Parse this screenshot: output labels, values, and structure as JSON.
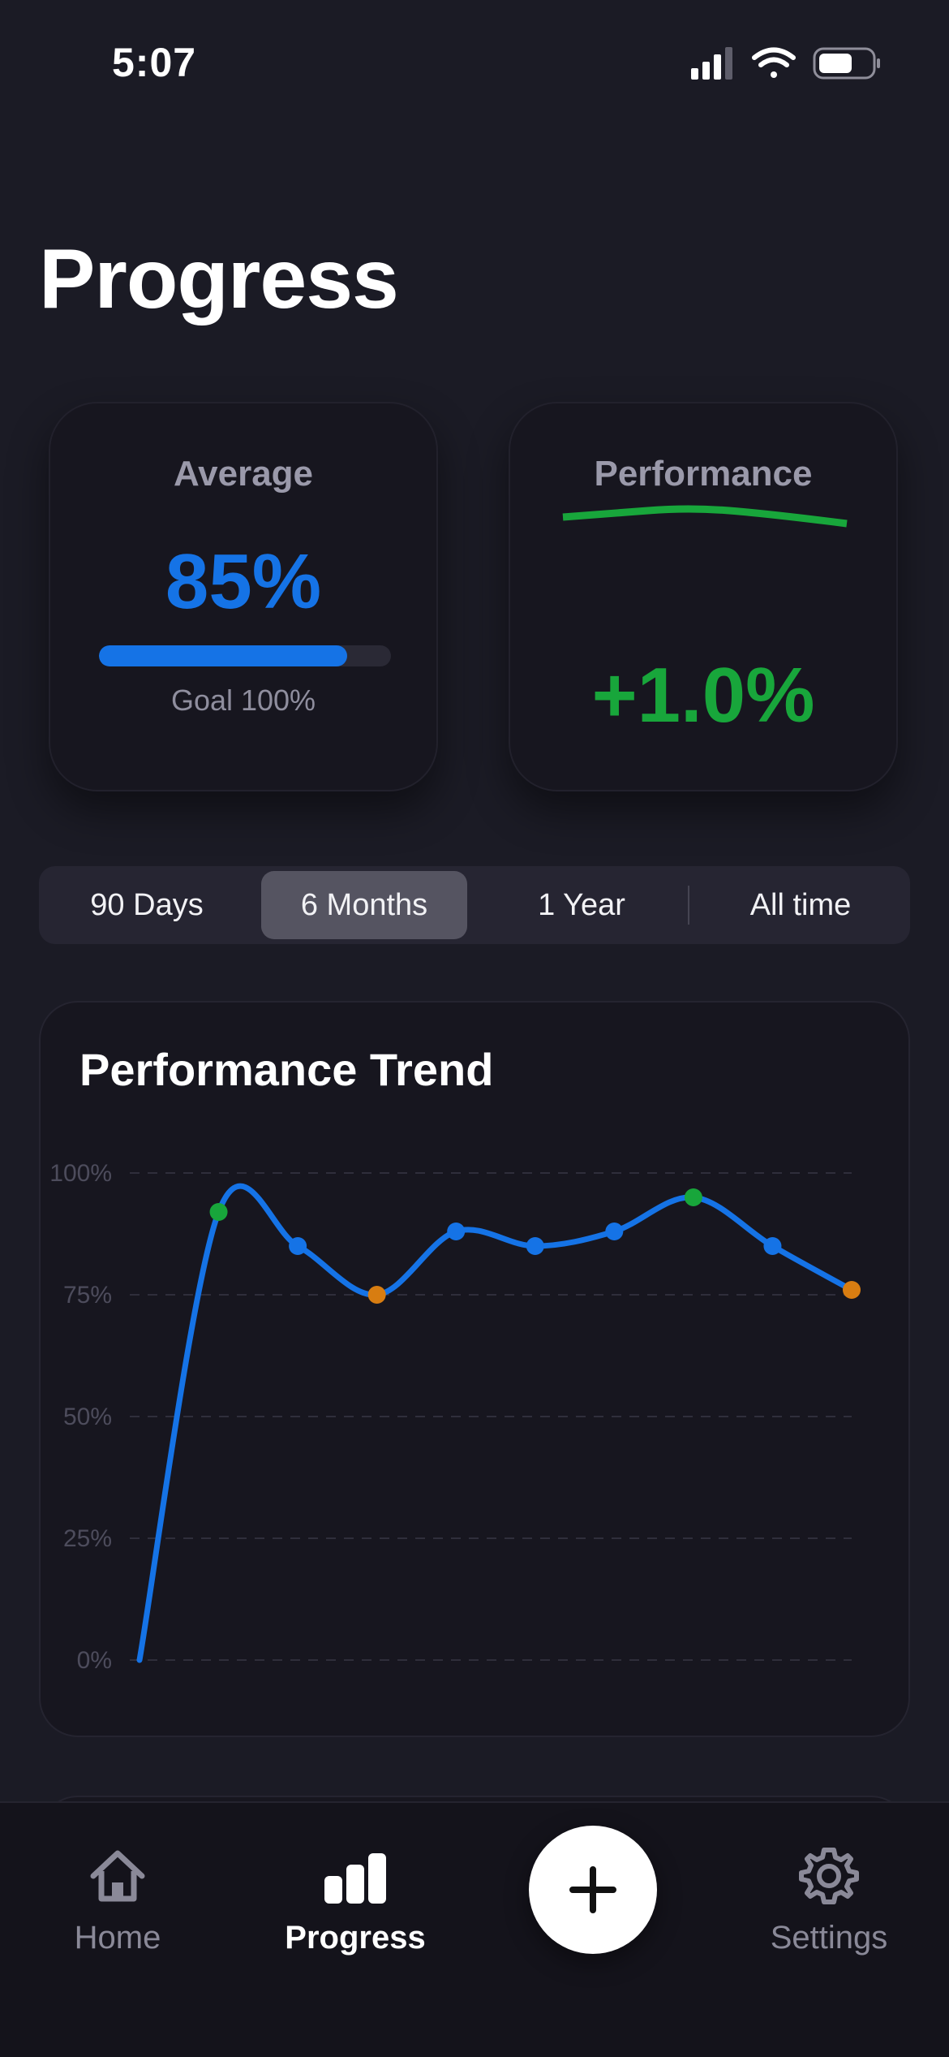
{
  "status_bar": {
    "time": "5:07",
    "icons": [
      "signal-icon",
      "wifi-icon",
      "battery-icon"
    ]
  },
  "page_title": "Progress",
  "average_card": {
    "label": "Average",
    "value": "85%",
    "progress": 0.85,
    "goal_label": "Goal 100%",
    "accent": "#1573e6"
  },
  "performance_card": {
    "label": "Performance",
    "value": "+1.0%",
    "accent": "#18a63b"
  },
  "range_tabs": [
    {
      "label": "90 Days",
      "active": false
    },
    {
      "label": "6 Months",
      "active": true
    },
    {
      "label": "1 Year",
      "active": false
    },
    {
      "label": "All time",
      "active": false
    }
  ],
  "trend": {
    "title": "Performance Trend",
    "chart_data": {
      "type": "line",
      "title": "Performance Trend",
      "ylim": [
        0,
        100
      ],
      "y_ticks": [
        "100%",
        "75%",
        "50%",
        "25%",
        "0%"
      ],
      "y_tick_values": [
        100,
        75,
        50,
        25,
        0
      ],
      "grid": true,
      "series": [
        {
          "values": [
            0,
            92,
            85,
            75,
            88,
            85,
            88,
            95,
            85,
            76
          ],
          "point_colors": [
            "none",
            "#18a63b",
            "#1573e6",
            "#d87d11",
            "#1573e6",
            "#1573e6",
            "#1573e6",
            "#18a63b",
            "#1573e6",
            "#d87d11"
          ],
          "line_color": "#1573e6"
        }
      ]
    }
  },
  "tab_bar": {
    "items": [
      {
        "label": "Home",
        "icon": "home-icon",
        "active": false
      },
      {
        "label": "Progress",
        "icon": "bar-chart-icon",
        "active": true
      },
      {
        "label": "Settings",
        "icon": "gear-icon",
        "active": false
      }
    ],
    "add_icon": "plus-icon"
  },
  "colors": {
    "background": "#1b1b25",
    "card": "#17161f",
    "blue": "#1573e6",
    "green": "#18a63b",
    "orange": "#d87d11"
  }
}
